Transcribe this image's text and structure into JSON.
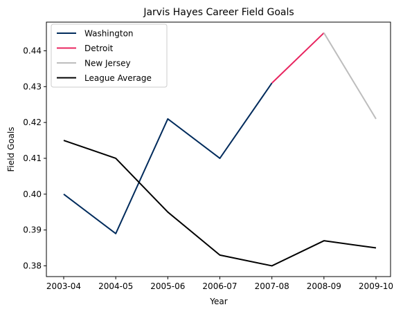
{
  "chart_data": {
    "type": "line",
    "title": "Jarvis Hayes Career Field Goals",
    "xlabel": "Year",
    "ylabel": "Field Goals",
    "categories": [
      "2003-04",
      "2004-05",
      "2005-06",
      "2006-07",
      "2007-08",
      "2008-09",
      "2009-10"
    ],
    "ylim": [
      0.377,
      0.448
    ],
    "yticks": [
      0.38,
      0.39,
      0.4,
      0.41,
      0.42,
      0.43,
      0.44
    ],
    "ytick_labels": [
      "0.38",
      "0.39",
      "0.40",
      "0.41",
      "0.42",
      "0.43",
      "0.44"
    ],
    "grid": false,
    "legend_position": "top-left",
    "series": [
      {
        "name": "Washington",
        "color": "#002B5C",
        "points": [
          {
            "x": "2003-04",
            "y": 0.4
          },
          {
            "x": "2004-05",
            "y": 0.389
          },
          {
            "x": "2005-06",
            "y": 0.421
          },
          {
            "x": "2006-07",
            "y": 0.41
          },
          {
            "x": "2007-08",
            "y": 0.431
          }
        ]
      },
      {
        "name": "Detroit",
        "color": "#E8245F",
        "points": [
          {
            "x": "2007-08",
            "y": 0.431
          },
          {
            "x": "2008-09",
            "y": 0.445
          }
        ]
      },
      {
        "name": "New Jersey",
        "color": "#BDBDBD",
        "points": [
          {
            "x": "2008-09",
            "y": 0.445
          },
          {
            "x": "2009-10",
            "y": 0.421
          }
        ]
      },
      {
        "name": "League Average",
        "color": "#000000",
        "points": [
          {
            "x": "2003-04",
            "y": 0.415
          },
          {
            "x": "2004-05",
            "y": 0.41
          },
          {
            "x": "2005-06",
            "y": 0.395
          },
          {
            "x": "2006-07",
            "y": 0.383
          },
          {
            "x": "2007-08",
            "y": 0.38
          },
          {
            "x": "2008-09",
            "y": 0.387
          },
          {
            "x": "2009-10",
            "y": 0.385
          }
        ]
      }
    ]
  }
}
